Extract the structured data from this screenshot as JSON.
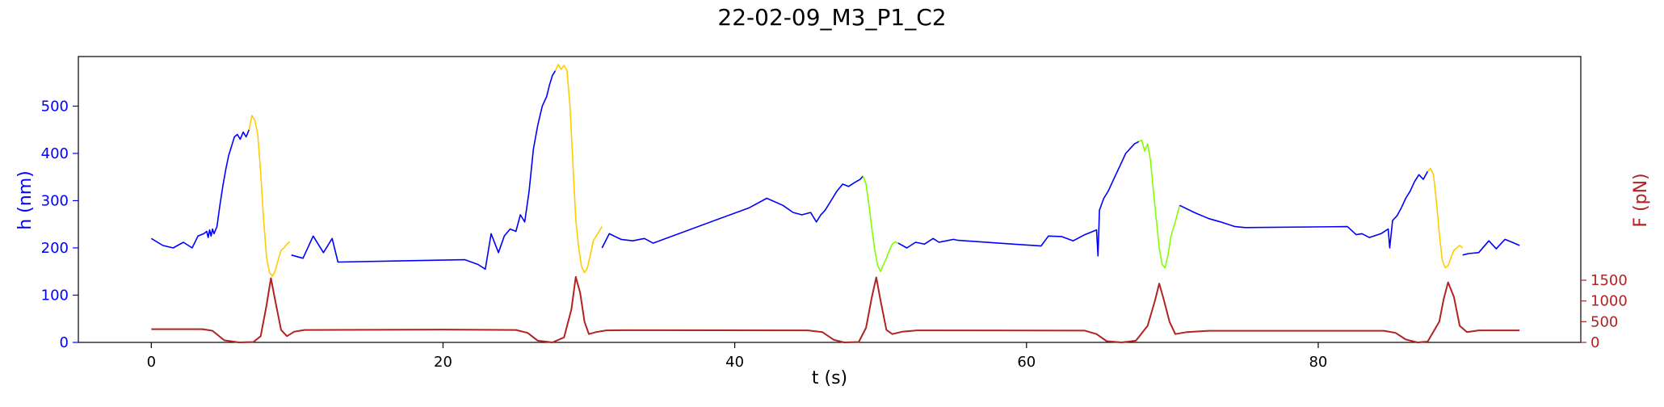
{
  "chart_data": {
    "type": "line",
    "title": "22-02-09_M3_P1_C2",
    "xlabel": "t (s)",
    "ylabel_left": "h (nm)",
    "ylabel_right": "F (pN)",
    "xlim": [
      -5,
      98
    ],
    "ylim_left": [
      0,
      605
    ],
    "ylim_right": [
      0,
      6900
    ],
    "xticks": [
      0,
      20,
      40,
      60,
      80
    ],
    "yticks_left": [
      0,
      100,
      200,
      300,
      400,
      500
    ],
    "yticks_right": [
      0,
      500,
      1000,
      1500
    ],
    "grid": false,
    "colors": {
      "h_axis": "#0000ff",
      "f_axis": "#b22222",
      "baseline": "#0000ff",
      "approach": "#ffcc00",
      "retract": "#7fff00",
      "force": "#b22222"
    },
    "series": [
      {
        "segment": "baseline",
        "color": "#0000ff",
        "x": [
          0,
          0.8,
          1.5,
          2.2,
          2.8,
          3.2,
          3.6,
          3.8,
          3.9,
          4.0,
          4.1,
          4.2,
          4.3,
          4.5,
          4.7,
          4.9,
          5.1,
          5.3,
          5.5,
          5.7,
          5.9,
          6.1,
          6.3,
          6.5,
          6.7
        ],
        "y": [
          220,
          205,
          200,
          212,
          200,
          225,
          230,
          235,
          222,
          238,
          225,
          240,
          230,
          245,
          290,
          330,
          365,
          395,
          415,
          435,
          440,
          430,
          445,
          435,
          450
        ]
      },
      {
        "segment": "approach",
        "color": "#ffcc00",
        "x": [
          6.7,
          6.9,
          7.1,
          7.3,
          7.5,
          7.7,
          7.9,
          8.1,
          8.3,
          8.5,
          8.7,
          8.9,
          9.1,
          9.3,
          9.5
        ],
        "y": [
          450,
          480,
          470,
          440,
          360,
          260,
          180,
          148,
          140,
          152,
          175,
          195,
          200,
          208,
          213
        ]
      },
      {
        "segment": "baseline",
        "color": "#0000ff",
        "x": [
          9.6,
          10.4,
          11.1,
          11.8,
          12.4,
          12.8,
          21.5,
          22.4,
          22.9,
          23.3,
          23.8,
          24.2,
          24.6,
          25.0,
          25.3,
          25.6,
          25.9,
          26.2,
          26.5,
          26.8,
          27.1,
          27.3,
          27.5,
          27.7
        ],
        "y": [
          185,
          178,
          225,
          190,
          220,
          170,
          175,
          165,
          155,
          230,
          190,
          225,
          240,
          235,
          270,
          255,
          320,
          410,
          460,
          500,
          520,
          545,
          565,
          575
        ]
      },
      {
        "segment": "approach",
        "color": "#ffcc00",
        "x": [
          27.7,
          27.9,
          28.1,
          28.3,
          28.5,
          28.7,
          28.9,
          29.1,
          29.3,
          29.5,
          29.7,
          29.9,
          30.1,
          30.3,
          30.6,
          30.9
        ],
        "y": [
          575,
          588,
          578,
          586,
          575,
          500,
          380,
          260,
          200,
          160,
          148,
          158,
          185,
          215,
          230,
          245
        ]
      },
      {
        "segment": "baseline",
        "color": "#0000ff",
        "x": [
          30.9,
          31.4,
          32.2,
          33.0,
          33.8,
          34.4,
          41.0,
          42.2,
          43.3,
          44.0,
          44.6,
          45.2,
          45.6,
          45.9,
          46.2,
          46.6,
          47.0,
          47.4,
          47.8,
          48.2,
          48.6,
          48.8
        ],
        "y": [
          200,
          230,
          218,
          215,
          220,
          210,
          285,
          305,
          290,
          275,
          270,
          275,
          255,
          270,
          280,
          300,
          320,
          335,
          330,
          338,
          345,
          352
        ]
      },
      {
        "segment": "retract",
        "color": "#7fff00",
        "x": [
          48.8,
          49.0,
          49.2,
          49.4,
          49.6,
          49.8,
          50.0,
          50.2,
          50.4,
          50.6,
          50.8,
          51.0,
          51.2
        ],
        "y": [
          352,
          335,
          290,
          240,
          195,
          162,
          150,
          165,
          178,
          195,
          208,
          213,
          210
        ]
      },
      {
        "segment": "baseline",
        "color": "#0000ff",
        "x": [
          51.2,
          51.8,
          52.4,
          53.0,
          53.6,
          54.0,
          54.5,
          55.0,
          55.3,
          61.0,
          61.5,
          62.4,
          63.2,
          64.0,
          64.8,
          64.9,
          65.0,
          65.3,
          65.6,
          65.9,
          66.2,
          66.5,
          66.8,
          67.1,
          67.4,
          67.7
        ],
        "y": [
          210,
          200,
          212,
          208,
          220,
          212,
          215,
          218,
          216,
          204,
          225,
          224,
          215,
          228,
          238,
          183,
          280,
          305,
          320,
          340,
          360,
          380,
          400,
          410,
          420,
          425
        ]
      },
      {
        "segment": "retract",
        "color": "#7fff00",
        "x": [
          67.7,
          67.9,
          68.1,
          68.3,
          68.5,
          68.7,
          68.9,
          69.1,
          69.3,
          69.5,
          69.7,
          69.9,
          70.2,
          70.5
        ],
        "y": [
          425,
          428,
          405,
          420,
          385,
          320,
          260,
          200,
          165,
          158,
          185,
          225,
          255,
          290
        ]
      },
      {
        "segment": "baseline",
        "color": "#0000ff",
        "x": [
          70.5,
          71.5,
          72.5,
          73.3,
          74.3,
          75.0,
          82.0,
          82.6,
          83.0,
          83.5,
          84.3,
          84.8,
          84.9,
          85.1,
          85.4,
          85.7,
          86.0,
          86.3,
          86.6,
          86.9,
          87.2,
          87.5
        ],
        "y": [
          290,
          275,
          262,
          255,
          245,
          243,
          245,
          228,
          230,
          222,
          230,
          240,
          200,
          258,
          268,
          285,
          305,
          320,
          340,
          355,
          345,
          362
        ]
      },
      {
        "segment": "approach",
        "color": "#ffcc00",
        "x": [
          87.5,
          87.7,
          87.9,
          88.1,
          88.3,
          88.5,
          88.7,
          88.9,
          89.1,
          89.3,
          89.5,
          89.7,
          89.9
        ],
        "y": [
          362,
          368,
          355,
          300,
          230,
          175,
          158,
          162,
          180,
          195,
          200,
          205,
          200
        ]
      },
      {
        "segment": "baseline",
        "color": "#0000ff",
        "x": [
          89.9,
          90.3,
          91.0,
          91.7,
          92.2,
          92.8,
          93.3,
          93.8
        ],
        "y": [
          185,
          188,
          190,
          215,
          198,
          218,
          212,
          205
        ]
      },
      {
        "segment": "force",
        "color": "#b22222",
        "x": [
          0,
          3.5,
          4.2,
          5.0,
          6.0,
          7.0,
          7.5,
          7.9,
          8.2,
          8.5,
          8.9,
          9.3,
          9.8,
          10.5,
          20,
          25.0,
          25.8,
          26.5,
          27.5,
          28.3,
          28.8,
          29.1,
          29.4,
          29.7,
          30.0,
          30.5,
          31.2,
          32.5,
          45,
          46.0,
          46.8,
          47.5,
          48.5,
          49.0,
          49.4,
          49.7,
          50.0,
          50.4,
          50.8,
          51.5,
          52.5,
          64,
          64.8,
          65.5,
          66.5,
          67.5,
          68.3,
          68.8,
          69.1,
          69.4,
          69.8,
          70.2,
          71.0,
          72.5,
          84.5,
          85.3,
          86.0,
          86.8,
          87.5,
          88.3,
          88.6,
          88.9,
          89.3,
          89.7,
          90.2,
          91.0,
          93.8
        ],
        "y": [
          320,
          320,
          280,
          50,
          0,
          10,
          150,
          900,
          1550,
          1000,
          300,
          150,
          260,
          300,
          310,
          300,
          230,
          40,
          0,
          120,
          800,
          1580,
          1200,
          500,
          200,
          250,
          290,
          295,
          290,
          250,
          60,
          0,
          10,
          350,
          1100,
          1570,
          1000,
          300,
          200,
          260,
          290,
          285,
          200,
          30,
          0,
          40,
          400,
          1000,
          1420,
          1050,
          500,
          200,
          250,
          280,
          280,
          230,
          70,
          0,
          20,
          500,
          1050,
          1450,
          1100,
          400,
          250,
          290,
          290
        ]
      }
    ]
  }
}
